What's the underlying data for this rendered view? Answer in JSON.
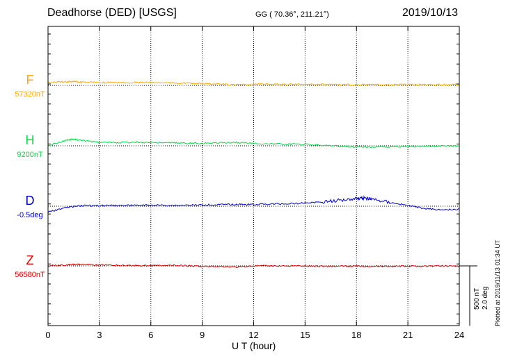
{
  "header": {
    "station": "Deadhorse (DED)  [USGS]",
    "coords": "GG ( 70.36°, 211.21°)",
    "date": "2019/10/13"
  },
  "footer": {
    "xaxis_label": "U T (hour)",
    "plotted_note": "Plotted at 2019/11/13 01:34 UT",
    "scale_nt": "500 nT",
    "scale_deg": "2.0 deg"
  },
  "chart_data": {
    "type": "line",
    "title": "Deadhorse (DED)  [USGS]",
    "xlabel": "U T (hour)",
    "xlim": [
      0,
      24
    ],
    "x_ticks": [
      0,
      3,
      6,
      9,
      12,
      15,
      18,
      21,
      24
    ],
    "x_tick_labels": [
      "0",
      "3",
      "6",
      "9",
      "12",
      "15",
      "18",
      "21",
      "24"
    ],
    "grid": "vertical dotted at 3-hour intervals",
    "scale_bar": {
      "nT": 500,
      "deg": 2.0
    },
    "series": [
      {
        "name": "F",
        "baseline_label": "57320nT",
        "baseline": 57320,
        "unit": "nT",
        "color": "#ffaa00",
        "x": [
          0,
          1,
          1.5,
          2,
          3,
          4,
          5,
          6,
          7,
          8,
          9,
          10,
          11,
          12,
          13,
          14,
          15,
          16,
          17,
          18,
          19,
          20,
          21,
          22,
          23,
          24
        ],
        "values": [
          57345,
          57350,
          57353,
          57348,
          57345,
          57343,
          57344,
          57344,
          57342,
          57338,
          57334,
          57330,
          57324,
          57330,
          57330,
          57329,
          57330,
          57328,
          57326,
          57327,
          57326,
          57326,
          57326,
          57327,
          57326,
          57326
        ]
      },
      {
        "name": "H",
        "baseline_label": "9200nT",
        "baseline": 9200,
        "unit": "nT",
        "color": "#00dd44",
        "x": [
          0,
          1,
          1.5,
          2,
          3,
          4,
          5,
          6,
          7,
          8,
          9,
          10,
          11,
          12,
          13,
          14,
          15,
          16,
          17,
          18,
          19,
          20,
          21,
          22,
          23,
          24
        ],
        "values": [
          9200,
          9245,
          9255,
          9245,
          9228,
          9228,
          9230,
          9228,
          9225,
          9222,
          9220,
          9225,
          9228,
          9220,
          9215,
          9214,
          9212,
          9205,
          9198,
          9192,
          9190,
          9192,
          9195,
          9196,
          9198,
          9200
        ]
      },
      {
        "name": "D",
        "baseline_label": "-0.5deg",
        "baseline": -0.5,
        "unit": "deg",
        "color": "#0000cc",
        "x": [
          0,
          1,
          2,
          3,
          4,
          5,
          6,
          7,
          8,
          9,
          10,
          11,
          12,
          13,
          14,
          15,
          16,
          17,
          18,
          18.5,
          19,
          20,
          21,
          22,
          23,
          24
        ],
        "values": [
          -0.7,
          -0.55,
          -0.48,
          -0.48,
          -0.47,
          -0.47,
          -0.47,
          -0.47,
          -0.47,
          -0.46,
          -0.45,
          -0.44,
          -0.44,
          -0.43,
          -0.42,
          -0.39,
          -0.36,
          -0.3,
          -0.24,
          -0.22,
          -0.28,
          -0.38,
          -0.48,
          -0.58,
          -0.62,
          -0.6
        ]
      },
      {
        "name": "Z",
        "baseline_label": "56580nT",
        "baseline": 56580,
        "unit": "nT",
        "color": "#dd0000",
        "x": [
          0,
          1,
          1.5,
          2,
          3,
          4,
          5,
          6,
          7,
          8,
          9,
          10,
          11,
          12,
          13,
          14,
          15,
          16,
          17,
          18,
          19,
          20,
          21,
          22,
          23,
          24
        ],
        "values": [
          56580,
          56588,
          56592,
          56590,
          56588,
          56585,
          56583,
          56582,
          56583,
          56582,
          56575,
          56576,
          56570,
          56580,
          56580,
          56580,
          56579,
          56578,
          56577,
          56578,
          56577,
          56578,
          56577,
          56578,
          56580,
          56580
        ]
      }
    ]
  }
}
